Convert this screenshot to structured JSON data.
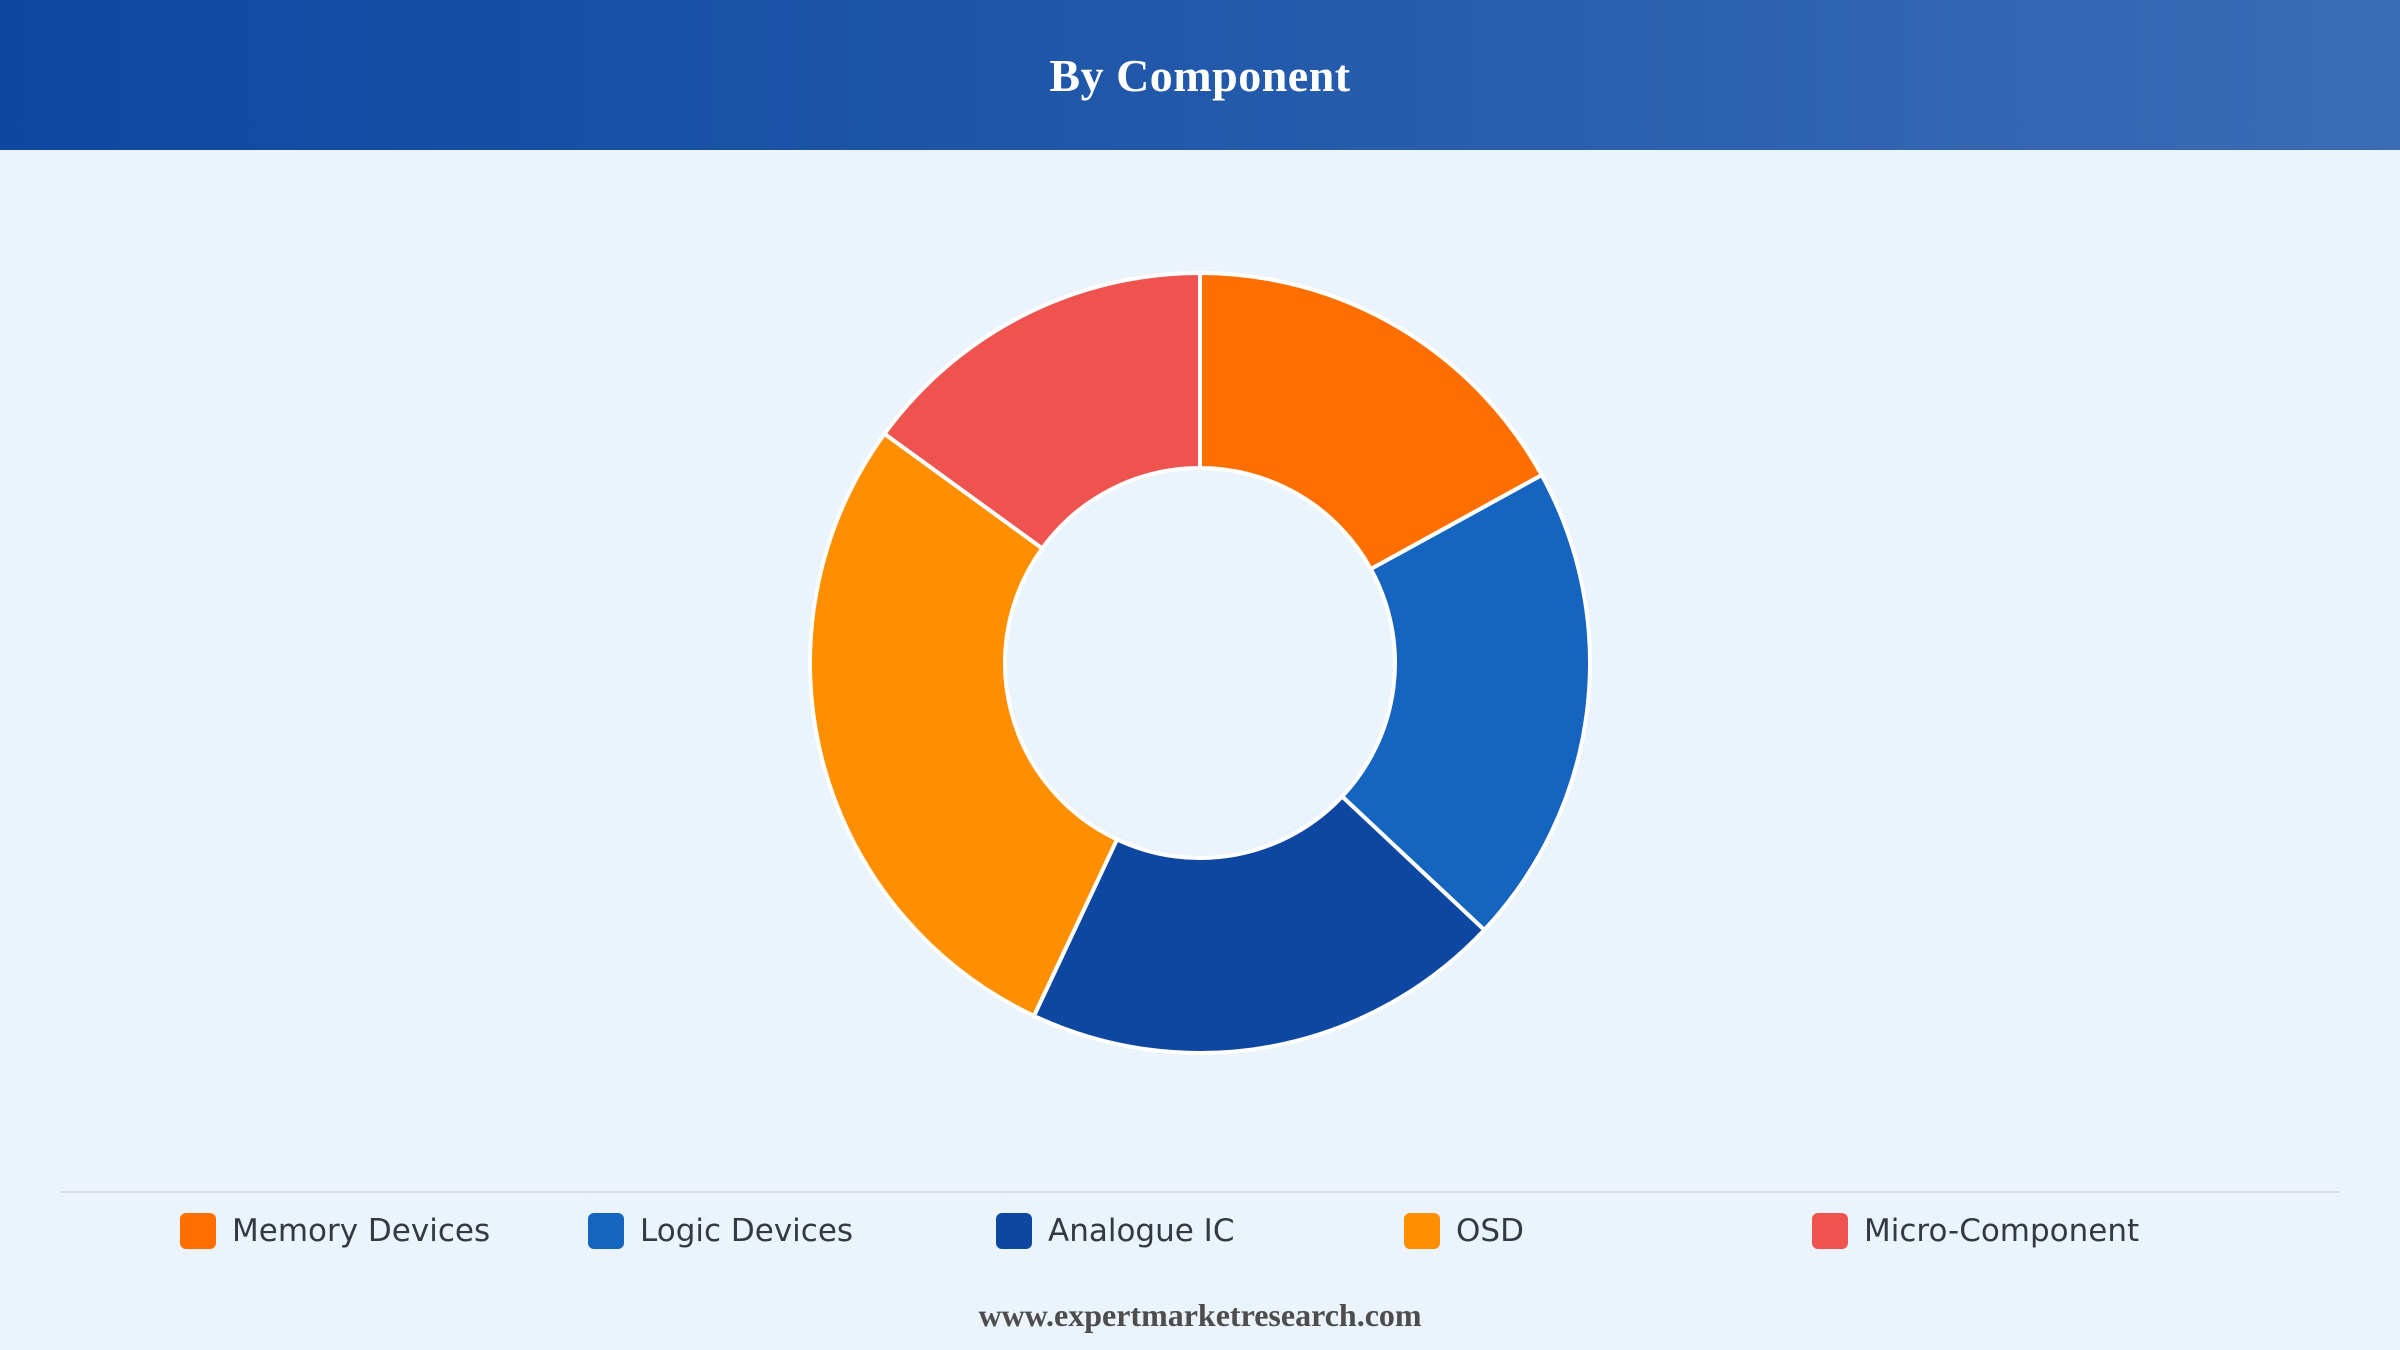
{
  "header": {
    "title": "By Component"
  },
  "chart_data": {
    "type": "pie",
    "subtype": "donut",
    "categories": [
      "Memory Devices",
      "Logic Devices",
      "Analogue IC",
      "OSD",
      "Micro-Component"
    ],
    "values": [
      17,
      20,
      20,
      28,
      15
    ],
    "colors": [
      "#ff6f00",
      "#1565c0",
      "#0d47a1",
      "#ff8f00",
      "#ef5350"
    ],
    "legend_position": "bottom"
  },
  "footer": {
    "source": "www.expertmarketresearch.com"
  }
}
